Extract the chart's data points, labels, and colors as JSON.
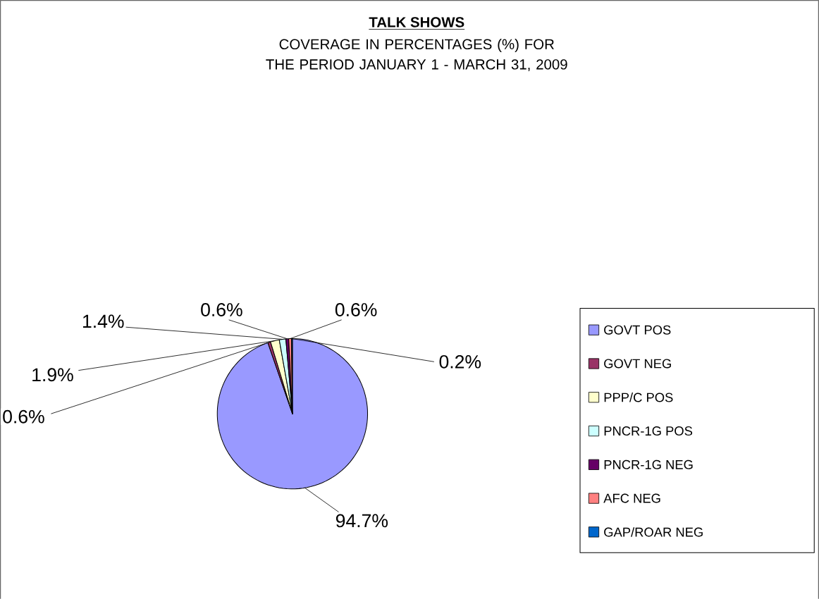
{
  "chart_data": {
    "type": "pie",
    "title": "TALK SHOWS",
    "subtitle": "COVERAGE IN PERCENTAGES (%) FOR THE PERIOD JANUARY 1 - MARCH 31, 2009",
    "categories": [
      "GOVT  POS",
      "GOVT  NEG",
      "PPP/C POS",
      "PNCR-1G POS",
      "PNCR-1G NEG",
      "AFC NEG",
      "GAP/ROAR NEG"
    ],
    "values": [
      94.7,
      0.6,
      1.9,
      1.4,
      0.6,
      0.6,
      0.2
    ],
    "value_labels": [
      "94.7%",
      "0.6%",
      "1.9%",
      "1.4%",
      "0.6%",
      "0.6%",
      "0.2%"
    ],
    "colors": [
      "#9999ff",
      "#993366",
      "#ffffcc",
      "#ccffff",
      "#660066",
      "#ff8080",
      "#0066cc"
    ],
    "legend": "right"
  }
}
